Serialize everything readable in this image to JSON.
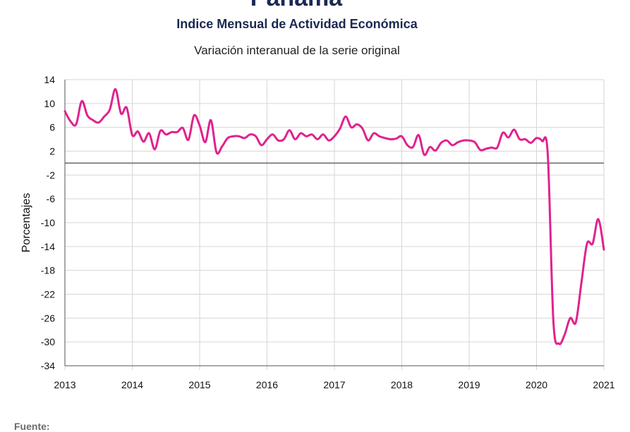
{
  "header": {
    "country": "Panamá",
    "title": "Indice Mensual de  Actividad Económica",
    "subtitle": "Variación interanual de la serie original"
  },
  "footer": {
    "source_label": "Fuente:"
  },
  "colors": {
    "series": "#e0228e",
    "zero_line": "#6e6e6e",
    "grid": "#d6d6d6"
  },
  "chart_data": {
    "type": "line",
    "title": "Indice Mensual de  Actividad Económica",
    "subtitle": "Variación interanual de la serie original",
    "xlabel": "",
    "ylabel": "Porcentajes",
    "xlim": [
      2013,
      2021
    ],
    "ylim": [
      -34,
      14
    ],
    "grid": true,
    "x_ticks": [
      "2013",
      "2014",
      "2015",
      "2016",
      "2017",
      "2018",
      "2019",
      "2020",
      "2021"
    ],
    "y_ticks": [
      "14",
      "10",
      "6",
      "2",
      "-2",
      "-6",
      "-10",
      "-14",
      "-18",
      "-22",
      "-26",
      "-30",
      "-34"
    ],
    "reference_line": 0,
    "x": [
      "2013-01",
      "2013-02",
      "2013-03",
      "2013-04",
      "2013-05",
      "2013-06",
      "2013-07",
      "2013-08",
      "2013-09",
      "2013-10",
      "2013-11",
      "2013-12",
      "2014-01",
      "2014-02",
      "2014-03",
      "2014-04",
      "2014-05",
      "2014-06",
      "2014-07",
      "2014-08",
      "2014-09",
      "2014-10",
      "2014-11",
      "2014-12",
      "2015-01",
      "2015-02",
      "2015-03",
      "2015-04",
      "2015-05",
      "2015-06",
      "2015-07",
      "2015-08",
      "2015-09",
      "2015-10",
      "2015-11",
      "2015-12",
      "2016-01",
      "2016-02",
      "2016-03",
      "2016-04",
      "2016-05",
      "2016-06",
      "2016-07",
      "2016-08",
      "2016-09",
      "2016-10",
      "2016-11",
      "2016-12",
      "2017-01",
      "2017-02",
      "2017-03",
      "2017-04",
      "2017-05",
      "2017-06",
      "2017-07",
      "2017-08",
      "2017-09",
      "2017-10",
      "2017-11",
      "2017-12",
      "2018-01",
      "2018-02",
      "2018-03",
      "2018-04",
      "2018-05",
      "2018-06",
      "2018-07",
      "2018-08",
      "2018-09",
      "2018-10",
      "2018-11",
      "2018-12",
      "2019-01",
      "2019-02",
      "2019-03",
      "2019-04",
      "2019-05",
      "2019-06",
      "2019-07",
      "2019-08",
      "2019-09",
      "2019-10",
      "2019-11",
      "2019-12",
      "2020-01",
      "2020-02",
      "2020-03",
      "2020-04",
      "2020-05",
      "2020-06",
      "2020-07",
      "2020-08",
      "2020-09",
      "2020-10",
      "2020-11",
      "2020-12",
      "2021-01"
    ],
    "series": [
      {
        "values": [
          8.7,
          7.0,
          6.5,
          10.4,
          8.0,
          7.2,
          6.8,
          7.8,
          9.0,
          12.4,
          8.3,
          9.3,
          4.7,
          5.3,
          3.6,
          5.0,
          2.3,
          5.4,
          4.8,
          5.2,
          5.2,
          5.9,
          3.9,
          8.0,
          6.3,
          3.5,
          7.2,
          1.8,
          2.8,
          4.2,
          4.5,
          4.5,
          4.2,
          4.8,
          4.5,
          3.0,
          4.0,
          4.8,
          3.8,
          4.0,
          5.5,
          4.0,
          5.0,
          4.5,
          4.8,
          4.0,
          4.8,
          3.8,
          4.5,
          5.8,
          7.8,
          6.0,
          6.5,
          5.8,
          3.8,
          5.0,
          4.5,
          4.2,
          4.0,
          4.1,
          4.5,
          3.0,
          2.7,
          4.7,
          1.4,
          2.7,
          2.1,
          3.4,
          3.8,
          3.0,
          3.5,
          3.8,
          3.8,
          3.5,
          2.2,
          2.4,
          2.6,
          2.6,
          5.1,
          4.3,
          5.6,
          4.0,
          4.0,
          3.4,
          4.2,
          3.7,
          1.5,
          -26.5,
          -30.3,
          -28.8,
          -26.0,
          -26.7,
          -20.0,
          -13.5,
          -13.5,
          -9.4,
          -14.5
        ]
      }
    ]
  }
}
